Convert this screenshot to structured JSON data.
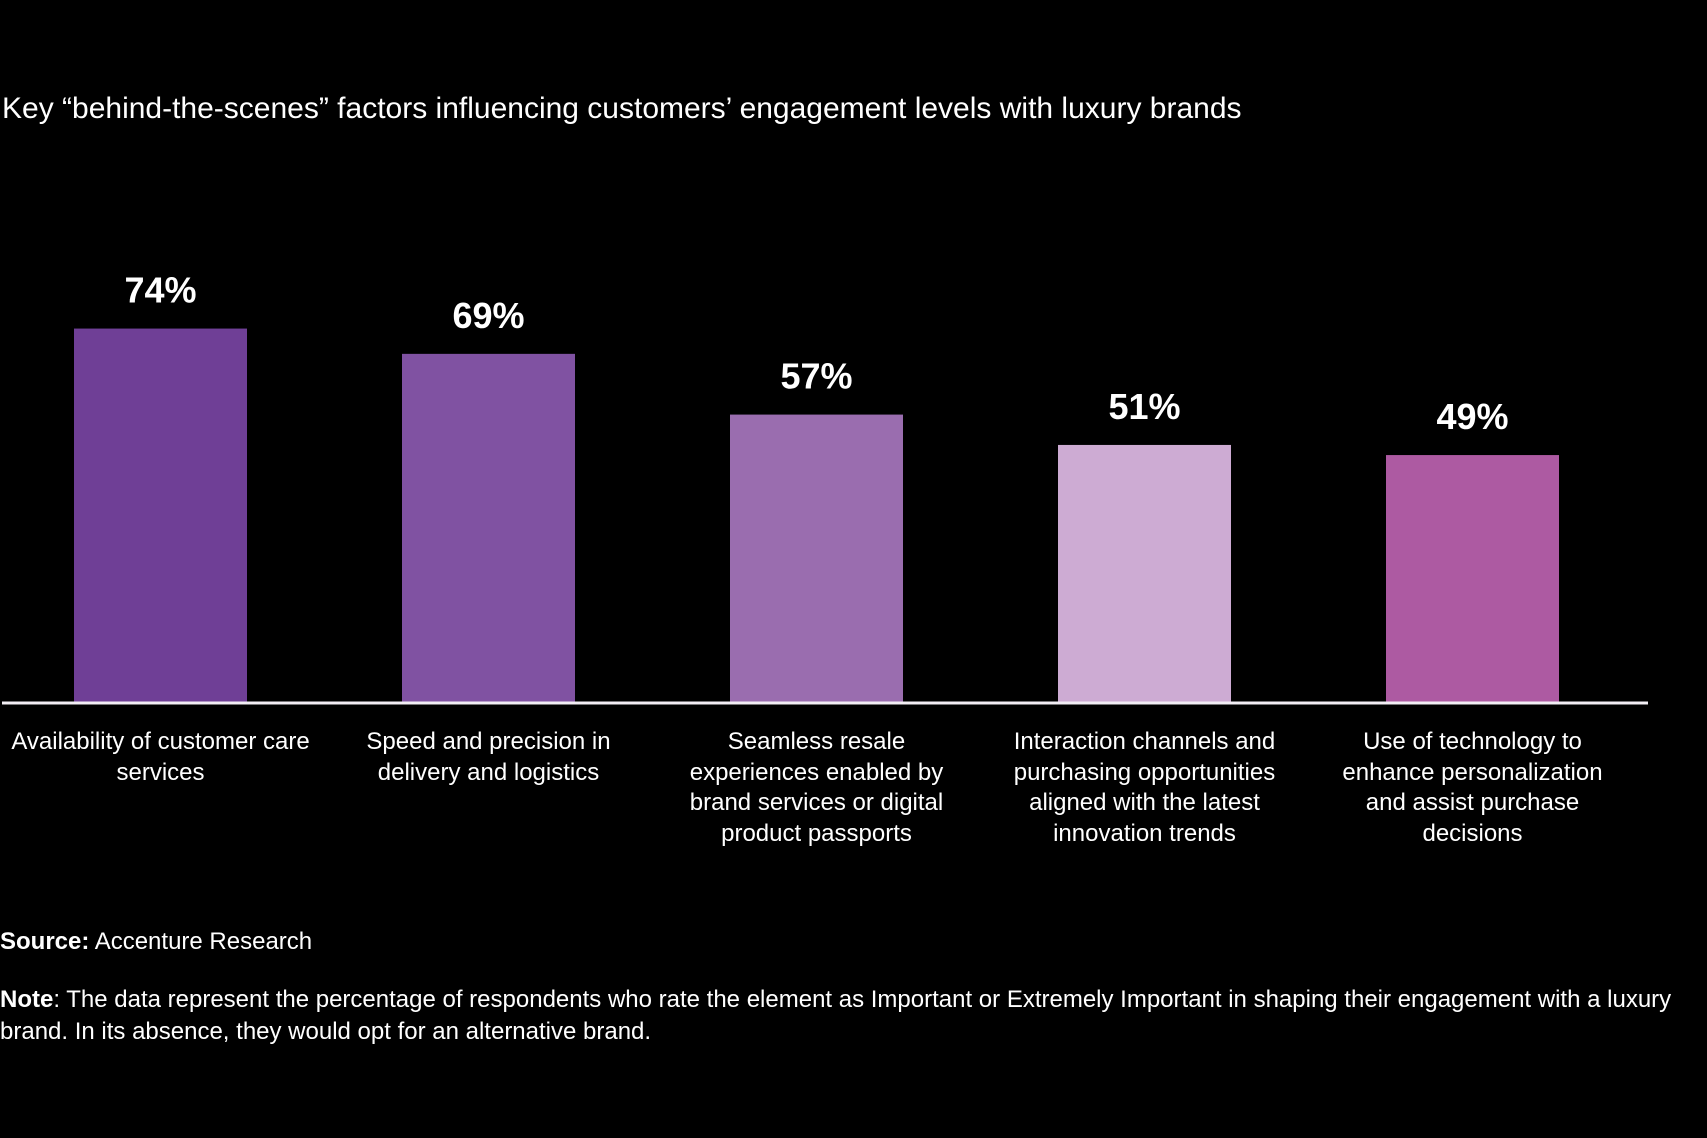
{
  "chart_data": {
    "type": "bar",
    "title": "Key “behind-the-scenes” factors influencing customers’ engagement levels with luxury brands",
    "categories": [
      "Availability of customer care services",
      "Speed and precision in delivery and logistics",
      "Seamless resale experiences enabled by brand services or digital product passports",
      "Interaction channels and purchasing opportunities aligned with the latest innovation trends",
      "Use of technology to enhance personalization and assist purchase decisions"
    ],
    "values": [
      74,
      69,
      57,
      51,
      49
    ],
    "data_labels": [
      "74%",
      "69%",
      "57%",
      "51%",
      "49%"
    ],
    "colors": [
      "#6f3f96",
      "#8052a2",
      "#9a6daf",
      "#cdabd3",
      "#ad5aa2"
    ],
    "xlabel": "",
    "ylabel": "",
    "ylim": [
      0,
      100
    ],
    "grid": false,
    "unit": "%"
  },
  "footer": {
    "source_label": "Source:",
    "source_text": "Accenture Research",
    "note_label": "Note",
    "note_text": ": The data represent the percentage of respondents who rate the element as Important or Extremely Important in shaping their engagement with a luxury brand. In its absence, they would opt for an alternative brand."
  },
  "background_color": "#000000"
}
